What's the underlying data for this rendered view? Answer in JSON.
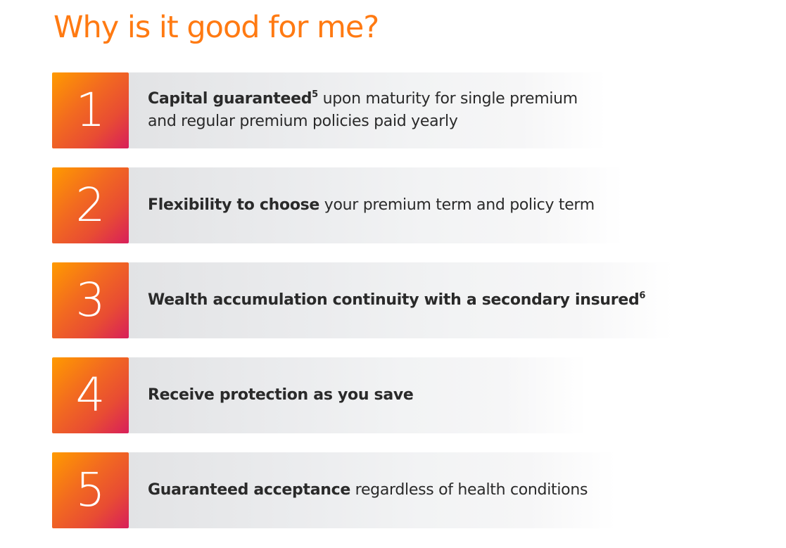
{
  "title": "Why is it good for me?",
  "colors": {
    "accent": "#ff7a12",
    "gradient_start": "#ff9a00",
    "gradient_end": "#d81f5a",
    "band": "#e2e3e5",
    "text": "#2a2a2a"
  },
  "items": [
    {
      "number": "1",
      "bold": "Capital guaranteed",
      "sup": "5",
      "rest_line1": " upon maturity for single premium",
      "rest_line2": "and regular premium policies paid yearly"
    },
    {
      "number": "2",
      "bold": "Flexibility to choose",
      "sup": "",
      "rest": " your premium term and policy term"
    },
    {
      "number": "3",
      "bold": "Wealth accumulation continuity with a secondary insured",
      "sup": "6",
      "rest": ""
    },
    {
      "number": "4",
      "bold": "Receive protection as you save",
      "sup": "",
      "rest": ""
    },
    {
      "number": "5",
      "bold": "Guaranteed acceptance",
      "sup": "",
      "rest": " regardless of health conditions"
    }
  ]
}
